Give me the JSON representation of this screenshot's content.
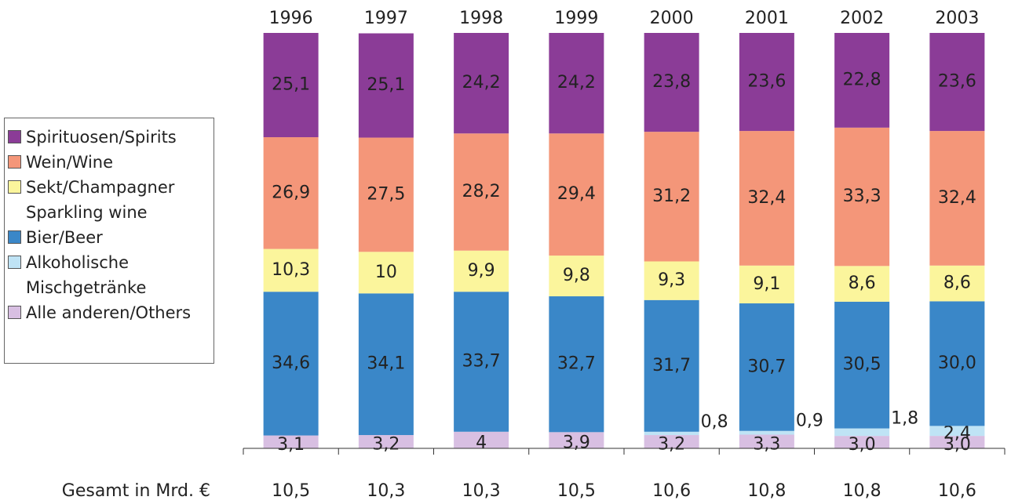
{
  "chart_data": {
    "type": "stacked_bar",
    "categories": [
      "1996",
      "1997",
      "1998",
      "1999",
      "2000",
      "2001",
      "2002",
      "2003"
    ],
    "ylim": [
      0,
      100
    ],
    "series": [
      {
        "name": "Spirituosen/Spirits",
        "color": "#8b3c97",
        "values": [
          25.1,
          25.1,
          24.2,
          24.2,
          23.8,
          23.6,
          22.8,
          23.6
        ],
        "value_labels": [
          "25,1",
          "25,1",
          "24,2",
          "24,2",
          "23,8",
          "23,6",
          "22,8",
          "23,6"
        ]
      },
      {
        "name": "Wein/Wine",
        "color": "#f49679",
        "values": [
          26.9,
          27.5,
          28.2,
          29.4,
          31.2,
          32.4,
          33.3,
          32.4
        ],
        "value_labels": [
          "26,9",
          "27,5",
          "28,2",
          "29,4",
          "31,2",
          "32,4",
          "33,3",
          "32,4"
        ]
      },
      {
        "name": "Sekt/Champagner Sparkling wine",
        "color": "#fbf59c",
        "values": [
          10.3,
          10,
          9.9,
          9.8,
          9.3,
          9.1,
          8.6,
          8.6
        ],
        "value_labels": [
          "10,3",
          "10",
          "9,9",
          "9,8",
          "9,3",
          "9,1",
          "8,6",
          "8,6"
        ]
      },
      {
        "name": "Bier/Beer",
        "color": "#3a87c8",
        "values": [
          34.6,
          34.1,
          33.7,
          32.7,
          31.7,
          30.7,
          30.5,
          30.0
        ],
        "value_labels": [
          "34,6",
          "34,1",
          "33,7",
          "32,7",
          "31,7",
          "30,7",
          "30,5",
          "30,0"
        ]
      },
      {
        "name": "Alkoholische Mischgetränke",
        "color": "#bfe3f5",
        "values": [
          0,
          0,
          0,
          0,
          0.8,
          0.9,
          1.8,
          2.4
        ],
        "value_labels": [
          null,
          null,
          null,
          null,
          "0,8",
          "0,9",
          "1,8",
          "2,4"
        ]
      },
      {
        "name": "Alle anderen/Others",
        "color": "#d8bfe2",
        "values": [
          3.1,
          3.2,
          4,
          3.9,
          3.2,
          3.3,
          3.0,
          3.0
        ],
        "value_labels": [
          "3,1",
          "3,2",
          "4",
          "3,9",
          "3,2",
          "3,3",
          "3,0",
          "3,0"
        ]
      }
    ],
    "totals": {
      "label": "Gesamt in Mrd. €",
      "values": [
        10.5,
        10.3,
        10.3,
        10.5,
        10.6,
        10.8,
        10.8,
        10.6
      ],
      "value_labels": [
        "10,5",
        "10,3",
        "10,3",
        "10,5",
        "10,6",
        "10,8",
        "10,8",
        "10,6"
      ]
    }
  }
}
